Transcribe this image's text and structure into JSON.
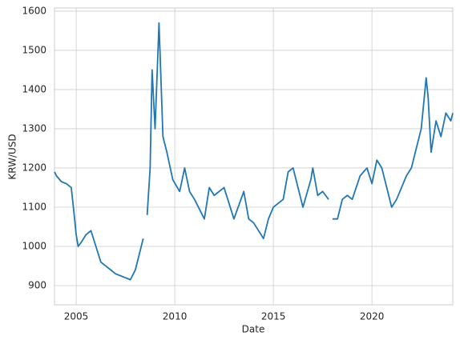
{
  "chart_data": {
    "type": "line",
    "xlabel": "Date",
    "ylabel": "KRW/USD",
    "x": [
      2003.9,
      2004.0,
      2004.25,
      2004.5,
      2004.75,
      2004.9,
      2005.0,
      2005.1,
      2005.25,
      2005.5,
      2005.75,
      2006.0,
      2006.25,
      2006.5,
      2006.75,
      2007.0,
      2007.25,
      2007.5,
      2007.75,
      2008.0,
      2008.25,
      2008.4,
      2008.5,
      2008.6,
      2008.75,
      2008.85,
      2009.0,
      2009.15,
      2009.2,
      2009.4,
      2009.6,
      2009.9,
      2010.25,
      2010.5,
      2010.75,
      2011.0,
      2011.5,
      2011.75,
      2012.0,
      2012.5,
      2012.75,
      2013.0,
      2013.5,
      2013.75,
      2014.0,
      2014.5,
      2014.75,
      2015.0,
      2015.5,
      2015.75,
      2016.0,
      2016.25,
      2016.5,
      2016.9,
      2017.0,
      2017.25,
      2017.5,
      2017.8,
      2017.9,
      2018.0,
      2018.25,
      2018.5,
      2018.75,
      2019.0,
      2019.4,
      2019.75,
      2020.0,
      2020.25,
      2020.5,
      2020.75,
      2021.0,
      2021.25,
      2021.5,
      2021.75,
      2022.0,
      2022.25,
      2022.5,
      2022.75,
      2022.85,
      2023.0,
      2023.25,
      2023.5,
      2023.75,
      2024.0,
      2024.1
    ],
    "values": [
      1190,
      1180,
      1165,
      1160,
      1150,
      1080,
      1030,
      1000,
      1010,
      1030,
      1040,
      1000,
      960,
      950,
      940,
      930,
      925,
      920,
      915,
      940,
      990,
      1020,
      null,
      1080,
      1200,
      1450,
      1300,
      1500,
      1570,
      1280,
      1240,
      1170,
      1140,
      1200,
      1140,
      1120,
      1070,
      1150,
      1130,
      1150,
      1110,
      1070,
      1140,
      1070,
      1060,
      1020,
      1070,
      1100,
      1120,
      1190,
      1200,
      1150,
      1100,
      1170,
      1200,
      1130,
      1140,
      1120,
      null,
      1070,
      1070,
      1120,
      1130,
      1120,
      1180,
      1200,
      1160,
      1220,
      1200,
      1150,
      1100,
      1120,
      1150,
      1180,
      1200,
      1250,
      1300,
      1430,
      1380,
      1240,
      1320,
      1280,
      1340,
      1320,
      1340
    ],
    "color": "#1f77b4",
    "xlim": [
      2003.9,
      2024.1
    ],
    "xticks": [
      2005,
      2010,
      2015,
      2020
    ],
    "ylim": [
      851,
      1608
    ],
    "yticks": [
      900,
      1000,
      1100,
      1200,
      1300,
      1400,
      1500,
      1600
    ],
    "grid": true
  }
}
